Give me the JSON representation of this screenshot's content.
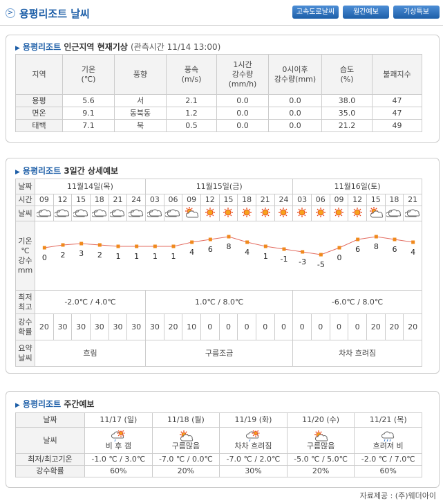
{
  "header": {
    "title": "용평리조트 날씨",
    "buttons": [
      "고속도로날씨",
      "월간예보",
      "기상특보"
    ]
  },
  "current": {
    "place": "용평리조트",
    "title": "인근지역 현재기상",
    "time_note": "(관측시간 11/14 13:00)",
    "columns": [
      "지역",
      "기온\n(℃)",
      "풍향",
      "풍속\n(m/s)",
      "1시간\n강수량\n(mm/h)",
      "0시이후\n강수량(mm)",
      "습도\n(%)",
      "불쾌지수"
    ],
    "rows": [
      [
        "용평",
        "5.6",
        "서",
        "2.1",
        "0.0",
        "0.0",
        "38.0",
        "47"
      ],
      [
        "면온",
        "9.1",
        "동북동",
        "1.2",
        "0.0",
        "0.0",
        "35.0",
        "47"
      ],
      [
        "태백",
        "7.1",
        "북",
        "0.5",
        "0.0",
        "0.0",
        "21.2",
        "49"
      ]
    ]
  },
  "forecast3": {
    "place": "용평리조트",
    "title": "3일간 상세예보",
    "labels": {
      "date": "날짜",
      "time": "시간",
      "weather": "날씨",
      "temp": "기온\n℃\n강수\nmm",
      "minmax": "최저\n최고",
      "prob": "강수\n확률",
      "summary": "요약\n날씨"
    },
    "days": [
      {
        "date": "11월14일(목)",
        "times": [
          "09",
          "12",
          "15",
          "18",
          "21",
          "24"
        ],
        "temps": [
          0,
          2,
          3,
          2,
          1,
          1
        ],
        "probs": [
          20,
          30,
          30,
          30,
          30,
          30
        ],
        "minmax": "-2.0℃ / 4.0℃",
        "summary": "흐림"
      },
      {
        "date": "11월15일(금)",
        "times": [
          "03",
          "06",
          "09",
          "12",
          "15",
          "18",
          "21",
          "24"
        ],
        "temps": [
          1,
          1,
          4,
          6,
          8,
          4,
          1,
          -1
        ],
        "probs": [
          30,
          20,
          10,
          0,
          0,
          0,
          0,
          0
        ],
        "minmax": "1.0℃ / 8.0℃",
        "summary": "구름조금"
      },
      {
        "date": "11월16일(토)",
        "times": [
          "03",
          "06",
          "09",
          "12",
          "15",
          "18",
          "21"
        ],
        "temps": [
          -3,
          -5,
          0,
          6,
          8,
          6,
          4
        ],
        "probs": [
          0,
          0,
          0,
          0,
          20,
          20,
          20
        ],
        "minmax": "-6.0℃ / 8.0℃",
        "summary": "차차 흐려짐"
      }
    ]
  },
  "weekly": {
    "place": "용평리조트",
    "title": "주간예보",
    "labels": {
      "date": "날짜",
      "weather": "날씨",
      "temp": "최저/최고기온",
      "prob": "강수확률"
    },
    "days": [
      {
        "date": "11/17 (일)",
        "weather": "비 후 갬",
        "temp": "-1.0 ℃ / 3.0℃",
        "prob": "60%"
      },
      {
        "date": "11/18 (월)",
        "weather": "구름많음",
        "temp": "-7.0 ℃ / 0.0℃",
        "prob": "20%"
      },
      {
        "date": "11/19 (화)",
        "weather": "차차 흐려짐",
        "temp": "-7.0 ℃ / 2.0℃",
        "prob": "30%"
      },
      {
        "date": "11/20 (수)",
        "weather": "구름많음",
        "temp": "-5.0 ℃ / 5.0℃",
        "prob": "20%"
      },
      {
        "date": "11/21 (목)",
        "weather": "흐려져 비",
        "temp": "-2.0 ℃ / 7.0℃",
        "prob": "60%"
      }
    ]
  },
  "footer": "자료제공 : (주)웨더아이"
}
